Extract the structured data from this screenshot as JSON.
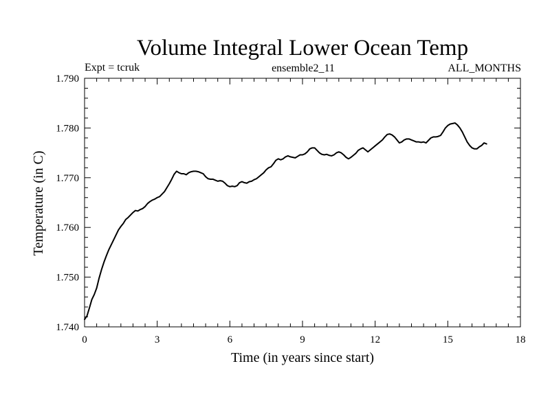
{
  "chart_data": {
    "type": "line",
    "title": "Volume Integral Lower Ocean Temp",
    "subtitle_left": "Expt = tcruk",
    "subtitle_center": "ensemble2_11",
    "subtitle_right": "ALL_MONTHS",
    "xlabel": "Time (in years since start)",
    "ylabel": "Temperature (in C)",
    "xlim": [
      0,
      18
    ],
    "ylim": [
      1.74,
      1.79
    ],
    "x_ticks": [
      0,
      3,
      6,
      9,
      12,
      15,
      18
    ],
    "x_tick_labels": [
      "0",
      "3",
      "6",
      "9",
      "12",
      "15",
      "18"
    ],
    "y_ticks": [
      1.74,
      1.75,
      1.76,
      1.77,
      1.78,
      1.79
    ],
    "y_tick_labels": [
      "1.740",
      "1.750",
      "1.760",
      "1.770",
      "1.780",
      "1.790"
    ],
    "grid": false,
    "series": [
      {
        "name": "Lower Ocean Temp",
        "color": "#000000",
        "points": [
          [
            0.0,
            1.7415
          ],
          [
            0.1,
            1.7422
          ],
          [
            0.2,
            1.7438
          ],
          [
            0.3,
            1.7455
          ],
          [
            0.4,
            1.7465
          ],
          [
            0.5,
            1.7478
          ],
          [
            0.6,
            1.7498
          ],
          [
            0.7,
            1.7515
          ],
          [
            0.8,
            1.753
          ],
          [
            0.9,
            1.7543
          ],
          [
            1.0,
            1.7555
          ],
          [
            1.1,
            1.7565
          ],
          [
            1.2,
            1.7575
          ],
          [
            1.3,
            1.7585
          ],
          [
            1.4,
            1.7595
          ],
          [
            1.5,
            1.7602
          ],
          [
            1.6,
            1.7608
          ],
          [
            1.7,
            1.7616
          ],
          [
            1.8,
            1.762
          ],
          [
            1.9,
            1.7625
          ],
          [
            2.0,
            1.763
          ],
          [
            2.1,
            1.7634
          ],
          [
            2.2,
            1.7633
          ],
          [
            2.3,
            1.7636
          ],
          [
            2.4,
            1.7638
          ],
          [
            2.5,
            1.7642
          ],
          [
            2.6,
            1.7648
          ],
          [
            2.7,
            1.7652
          ],
          [
            2.8,
            1.7655
          ],
          [
            2.9,
            1.7657
          ],
          [
            3.0,
            1.766
          ],
          [
            3.1,
            1.7662
          ],
          [
            3.2,
            1.7667
          ],
          [
            3.3,
            1.7672
          ],
          [
            3.4,
            1.768
          ],
          [
            3.5,
            1.7688
          ],
          [
            3.6,
            1.7697
          ],
          [
            3.7,
            1.7707
          ],
          [
            3.8,
            1.7713
          ],
          [
            3.9,
            1.771
          ],
          [
            4.0,
            1.7708
          ],
          [
            4.1,
            1.7708
          ],
          [
            4.2,
            1.7706
          ],
          [
            4.3,
            1.771
          ],
          [
            4.4,
            1.7712
          ],
          [
            4.5,
            1.7713
          ],
          [
            4.6,
            1.7713
          ],
          [
            4.7,
            1.7712
          ],
          [
            4.8,
            1.771
          ],
          [
            4.9,
            1.7708
          ],
          [
            5.0,
            1.7702
          ],
          [
            5.1,
            1.7698
          ],
          [
            5.2,
            1.7697
          ],
          [
            5.3,
            1.7697
          ],
          [
            5.4,
            1.7695
          ],
          [
            5.5,
            1.7693
          ],
          [
            5.6,
            1.7694
          ],
          [
            5.7,
            1.7693
          ],
          [
            5.8,
            1.7689
          ],
          [
            5.9,
            1.7684
          ],
          [
            6.0,
            1.7682
          ],
          [
            6.1,
            1.7683
          ],
          [
            6.2,
            1.7682
          ],
          [
            6.3,
            1.7684
          ],
          [
            6.4,
            1.769
          ],
          [
            6.5,
            1.7692
          ],
          [
            6.6,
            1.769
          ],
          [
            6.7,
            1.7689
          ],
          [
            6.8,
            1.7692
          ],
          [
            6.9,
            1.7693
          ],
          [
            7.0,
            1.7696
          ],
          [
            7.1,
            1.7698
          ],
          [
            7.2,
            1.7702
          ],
          [
            7.3,
            1.7706
          ],
          [
            7.4,
            1.771
          ],
          [
            7.5,
            1.7716
          ],
          [
            7.6,
            1.772
          ],
          [
            7.7,
            1.7722
          ],
          [
            7.8,
            1.7728
          ],
          [
            7.9,
            1.7735
          ],
          [
            8.0,
            1.7738
          ],
          [
            8.1,
            1.7736
          ],
          [
            8.2,
            1.7738
          ],
          [
            8.3,
            1.7742
          ],
          [
            8.4,
            1.7744
          ],
          [
            8.5,
            1.7742
          ],
          [
            8.6,
            1.7741
          ],
          [
            8.7,
            1.774
          ],
          [
            8.8,
            1.7743
          ],
          [
            8.9,
            1.7746
          ],
          [
            9.0,
            1.7746
          ],
          [
            9.1,
            1.7748
          ],
          [
            9.2,
            1.7752
          ],
          [
            9.3,
            1.7758
          ],
          [
            9.4,
            1.776
          ],
          [
            9.5,
            1.776
          ],
          [
            9.6,
            1.7755
          ],
          [
            9.7,
            1.775
          ],
          [
            9.8,
            1.7747
          ],
          [
            9.9,
            1.7746
          ],
          [
            10.0,
            1.7747
          ],
          [
            10.1,
            1.7745
          ],
          [
            10.2,
            1.7744
          ],
          [
            10.3,
            1.7746
          ],
          [
            10.4,
            1.775
          ],
          [
            10.5,
            1.7752
          ],
          [
            10.6,
            1.775
          ],
          [
            10.7,
            1.7746
          ],
          [
            10.8,
            1.7741
          ],
          [
            10.9,
            1.7738
          ],
          [
            11.0,
            1.7741
          ],
          [
            11.1,
            1.7745
          ],
          [
            11.2,
            1.7749
          ],
          [
            11.3,
            1.7755
          ],
          [
            11.4,
            1.7758
          ],
          [
            11.5,
            1.776
          ],
          [
            11.6,
            1.7756
          ],
          [
            11.7,
            1.7752
          ],
          [
            11.8,
            1.7756
          ],
          [
            11.9,
            1.776
          ],
          [
            12.0,
            1.7764
          ],
          [
            12.1,
            1.7768
          ],
          [
            12.2,
            1.7772
          ],
          [
            12.3,
            1.7776
          ],
          [
            12.4,
            1.7782
          ],
          [
            12.5,
            1.7787
          ],
          [
            12.6,
            1.7788
          ],
          [
            12.7,
            1.7786
          ],
          [
            12.8,
            1.7782
          ],
          [
            12.9,
            1.7776
          ],
          [
            13.0,
            1.777
          ],
          [
            13.1,
            1.7772
          ],
          [
            13.2,
            1.7776
          ],
          [
            13.3,
            1.7778
          ],
          [
            13.4,
            1.7778
          ],
          [
            13.5,
            1.7776
          ],
          [
            13.6,
            1.7774
          ],
          [
            13.7,
            1.7772
          ],
          [
            13.8,
            1.7772
          ],
          [
            13.9,
            1.7771
          ],
          [
            14.0,
            1.7772
          ],
          [
            14.1,
            1.777
          ],
          [
            14.2,
            1.7775
          ],
          [
            14.3,
            1.778
          ],
          [
            14.4,
            1.7782
          ],
          [
            14.5,
            1.7782
          ],
          [
            14.6,
            1.7783
          ],
          [
            14.7,
            1.7785
          ],
          [
            14.8,
            1.7792
          ],
          [
            14.9,
            1.78
          ],
          [
            15.0,
            1.7805
          ],
          [
            15.1,
            1.7808
          ],
          [
            15.2,
            1.7809
          ],
          [
            15.3,
            1.781
          ],
          [
            15.4,
            1.7806
          ],
          [
            15.5,
            1.78
          ],
          [
            15.6,
            1.7792
          ],
          [
            15.7,
            1.7782
          ],
          [
            15.8,
            1.7772
          ],
          [
            15.9,
            1.7765
          ],
          [
            16.0,
            1.776
          ],
          [
            16.1,
            1.7758
          ],
          [
            16.2,
            1.7758
          ],
          [
            16.3,
            1.7762
          ],
          [
            16.4,
            1.7765
          ],
          [
            16.5,
            1.777
          ],
          [
            16.6,
            1.7768
          ]
        ]
      }
    ]
  }
}
